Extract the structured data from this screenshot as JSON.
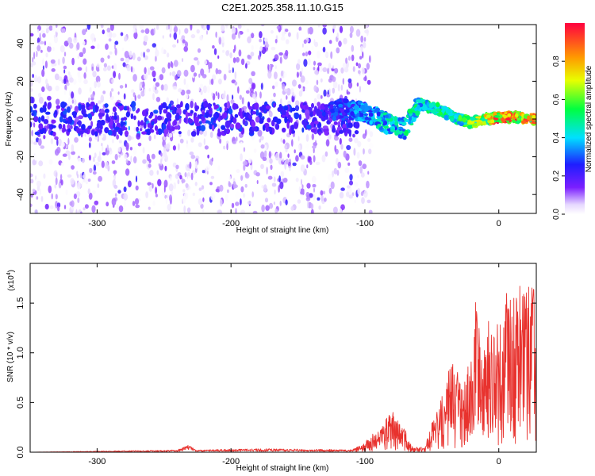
{
  "title": "C2E1.2025.358.11.10.G15",
  "chart_data": [
    {
      "type": "heatmap",
      "title": "C2E1.2025.358.11.10.G15",
      "xlabel": "Height of straight line (km)",
      "ylabel": "Frequency (Hz)",
      "xlim": [
        -350,
        28
      ],
      "ylim": [
        -50,
        50
      ],
      "xticks": [
        -300,
        -200,
        -100,
        0
      ],
      "xtick_labels": [
        "-300",
        "-200",
        "-100",
        "0"
      ],
      "yticks": [
        -40,
        -20,
        0,
        20,
        40
      ],
      "ytick_labels": [
        "-40",
        "-20",
        "0",
        "20",
        "40"
      ],
      "colorbar": {
        "label": "Normalized spectral amplitude",
        "range": [
          0.0,
          1.0
        ],
        "ticks": [
          0.0,
          0.2,
          0.4,
          0.6,
          0.8
        ],
        "tick_labels": [
          "0.0",
          "0.2",
          "0.4",
          "0.6",
          "0.8"
        ],
        "colormap": "rainbow (white → violet → blue → cyan → green → yellow → red)"
      },
      "features": {
        "noise_region_x": [
          -350,
          -105
        ],
        "noise_amplitude": 0.15,
        "signal_band_center_hz": [
          {
            "x": -120,
            "y": 5
          },
          {
            "x": -100,
            "y": 4
          },
          {
            "x": -85,
            "y": -2
          },
          {
            "x": -70,
            "y": -5
          },
          {
            "x": -60,
            "y": 8
          },
          {
            "x": -45,
            "y": 5
          },
          {
            "x": -30,
            "y": 0
          },
          {
            "x": -20,
            "y": -2
          },
          {
            "x": -10,
            "y": 0
          },
          {
            "x": 0,
            "y": 1
          },
          {
            "x": 10,
            "y": 1
          },
          {
            "x": 28,
            "y": 0
          }
        ],
        "signal_amplitude_trend": [
          {
            "x": -120,
            "v": 0.3
          },
          {
            "x": -90,
            "v": 0.45
          },
          {
            "x": -60,
            "v": 0.5
          },
          {
            "x": -30,
            "v": 0.55
          },
          {
            "x": -15,
            "v": 0.7
          },
          {
            "x": 0,
            "v": 0.95
          },
          {
            "x": 28,
            "v": 0.85
          }
        ]
      },
      "grid": false
    },
    {
      "type": "line",
      "xlabel": "Height of straight line (km)",
      "ylabel": "SNR (10 * v/v)",
      "y_multiplier": "(x10",
      "y_multiplier_exp": "4",
      "y_multiplier_close": ")",
      "xlim": [
        -350,
        28
      ],
      "ylim": [
        0,
        1.9
      ],
      "xticks": [
        -300,
        -200,
        -100,
        0
      ],
      "xtick_labels": [
        "-300",
        "-200",
        "-100",
        "0"
      ],
      "yticks": [
        0.0,
        0.5,
        1.0,
        1.5
      ],
      "ytick_labels": [
        "0.0",
        "0.5",
        "1.0",
        "1.5"
      ],
      "series": [
        {
          "color": "#e8322e",
          "envelope": [
            {
              "x": -350,
              "y": 0.0
            },
            {
              "x": -240,
              "y": 0.02
            },
            {
              "x": -232,
              "y": 0.06
            },
            {
              "x": -225,
              "y": 0.02
            },
            {
              "x": -170,
              "y": 0.03
            },
            {
              "x": -110,
              "y": 0.02
            },
            {
              "x": -100,
              "y": 0.1
            },
            {
              "x": -90,
              "y": 0.2
            },
            {
              "x": -80,
              "y": 0.4
            },
            {
              "x": -75,
              "y": 0.3
            },
            {
              "x": -70,
              "y": 0.25
            },
            {
              "x": -65,
              "y": 0.05
            },
            {
              "x": -55,
              "y": 0.05
            },
            {
              "x": -50,
              "y": 0.3
            },
            {
              "x": -42,
              "y": 0.55
            },
            {
              "x": -35,
              "y": 0.9
            },
            {
              "x": -30,
              "y": 0.85
            },
            {
              "x": -27,
              "y": 0.6
            },
            {
              "x": -20,
              "y": 1.0
            },
            {
              "x": -17,
              "y": 1.55
            },
            {
              "x": -12,
              "y": 1.1
            },
            {
              "x": -5,
              "y": 1.2
            },
            {
              "x": 0,
              "y": 1.25
            },
            {
              "x": 8,
              "y": 1.7
            },
            {
              "x": 15,
              "y": 1.45
            },
            {
              "x": 22,
              "y": 1.6
            },
            {
              "x": 28,
              "y": 1.68
            }
          ]
        }
      ],
      "grid": false
    }
  ]
}
